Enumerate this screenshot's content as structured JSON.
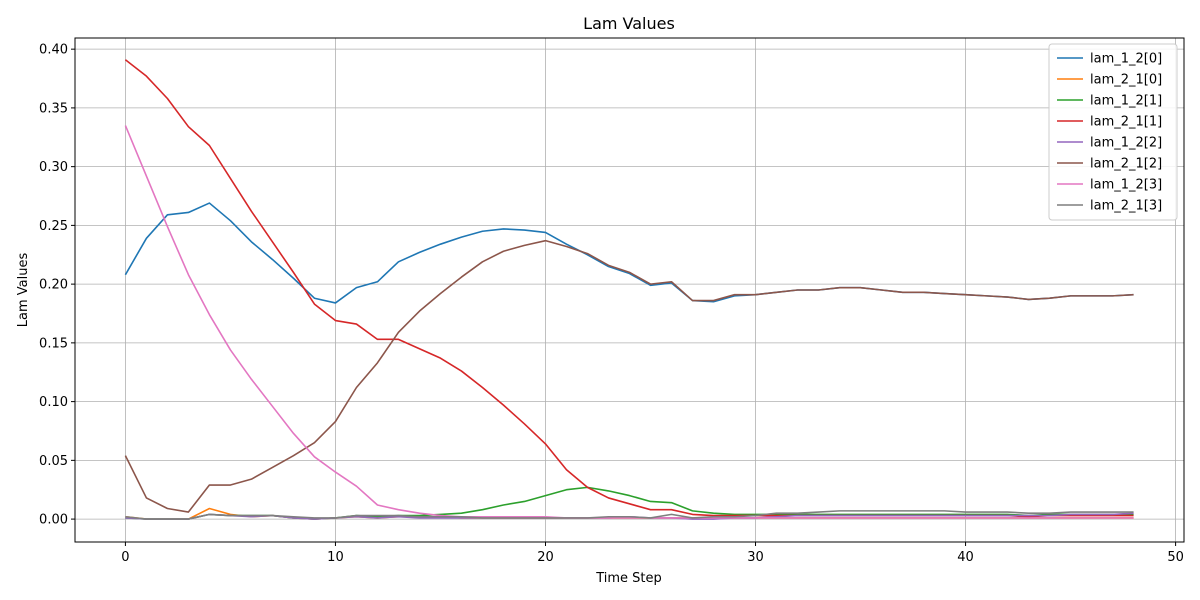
{
  "chart_data": {
    "type": "line",
    "title": "Lam Values",
    "xlabel": "Time Step",
    "ylabel": "Lam Values",
    "xlim": [
      -2.4,
      50.4
    ],
    "ylim": [
      -0.0195,
      0.4095
    ],
    "xticks": [
      0,
      10,
      20,
      30,
      40,
      50
    ],
    "yticks": [
      0.0,
      0.05,
      0.1,
      0.15,
      0.2,
      0.25,
      0.3,
      0.35,
      0.4
    ],
    "xtick_labels": [
      "0",
      "10",
      "20",
      "30",
      "40",
      "50"
    ],
    "ytick_labels": [
      "0.00",
      "0.05",
      "0.10",
      "0.15",
      "0.20",
      "0.25",
      "0.30",
      "0.35",
      "0.40"
    ],
    "grid": true,
    "legend_position": "top-right",
    "x": [
      0,
      1,
      2,
      3,
      4,
      5,
      6,
      7,
      8,
      9,
      10,
      11,
      12,
      13,
      14,
      15,
      16,
      17,
      18,
      19,
      20,
      21,
      22,
      23,
      24,
      25,
      26,
      27,
      28,
      29,
      30,
      31,
      32,
      33,
      34,
      35,
      36,
      37,
      38,
      39,
      40,
      41,
      42,
      43,
      44,
      45,
      46,
      47,
      48
    ],
    "series": [
      {
        "name": "lam_1_2[0]",
        "color": "#1f77b4",
        "values": [
          0.208,
          0.239,
          0.259,
          0.261,
          0.269,
          0.254,
          0.236,
          0.221,
          0.205,
          0.188,
          0.184,
          0.197,
          0.202,
          0.219,
          0.227,
          0.234,
          0.24,
          0.245,
          0.247,
          0.246,
          0.244,
          0.234,
          0.225,
          0.215,
          0.209,
          0.199,
          0.201,
          0.186,
          0.185,
          0.19,
          0.191,
          0.193,
          0.195,
          0.195,
          0.197,
          0.197,
          0.195,
          0.193,
          0.193,
          0.192,
          0.191,
          0.19,
          0.189,
          0.187,
          0.188,
          0.19,
          0.19,
          0.19,
          0.191
        ]
      },
      {
        "name": "lam_2_1[0]",
        "color": "#ff7f0e",
        "values": [
          0.002,
          0.0,
          0.0,
          0.0,
          0.009,
          0.004,
          0.002,
          0.003,
          0.001,
          0.0,
          0.001,
          0.002,
          0.001,
          0.002,
          0.002,
          0.002,
          0.001,
          0.001,
          0.001,
          0.001,
          0.001,
          0.001,
          0.001,
          0.001,
          0.001,
          0.001,
          0.001,
          0.001,
          0.001,
          0.001,
          0.001,
          0.001,
          0.001,
          0.001,
          0.001,
          0.001,
          0.001,
          0.001,
          0.001,
          0.001,
          0.001,
          0.001,
          0.001,
          0.001,
          0.001,
          0.001,
          0.001,
          0.001,
          0.001
        ]
      },
      {
        "name": "lam_1_2[1]",
        "color": "#2ca02c",
        "values": [
          0.001,
          0.0,
          0.0,
          0.0,
          0.004,
          0.003,
          0.003,
          0.003,
          0.001,
          0.0,
          0.001,
          0.003,
          0.002,
          0.003,
          0.003,
          0.004,
          0.005,
          0.008,
          0.012,
          0.015,
          0.02,
          0.025,
          0.027,
          0.024,
          0.02,
          0.015,
          0.014,
          0.007,
          0.005,
          0.004,
          0.004,
          0.004,
          0.004,
          0.004,
          0.004,
          0.004,
          0.004,
          0.004,
          0.004,
          0.004,
          0.004,
          0.004,
          0.004,
          0.003,
          0.004,
          0.004,
          0.004,
          0.004,
          0.004
        ]
      },
      {
        "name": "lam_2_1[1]",
        "color": "#d62728",
        "values": [
          0.391,
          0.377,
          0.358,
          0.334,
          0.318,
          0.29,
          0.262,
          0.236,
          0.21,
          0.183,
          0.169,
          0.166,
          0.153,
          0.153,
          0.145,
          0.137,
          0.126,
          0.112,
          0.097,
          0.081,
          0.064,
          0.042,
          0.027,
          0.018,
          0.013,
          0.008,
          0.008,
          0.004,
          0.003,
          0.003,
          0.003,
          0.003,
          0.003,
          0.003,
          0.003,
          0.003,
          0.003,
          0.003,
          0.003,
          0.003,
          0.003,
          0.003,
          0.003,
          0.002,
          0.003,
          0.003,
          0.003,
          0.003,
          0.003
        ]
      },
      {
        "name": "lam_1_2[2]",
        "color": "#9467bd",
        "values": [
          0.001,
          0.0,
          0.0,
          0.0,
          0.004,
          0.003,
          0.002,
          0.003,
          0.001,
          0.0,
          0.001,
          0.002,
          0.001,
          0.002,
          0.001,
          0.001,
          0.001,
          0.001,
          0.001,
          0.001,
          0.001,
          0.001,
          0.001,
          0.001,
          0.002,
          0.001,
          0.001,
          0.0,
          0.0,
          0.001,
          0.001,
          0.002,
          0.003,
          0.003,
          0.003,
          0.003,
          0.003,
          0.003,
          0.003,
          0.003,
          0.003,
          0.003,
          0.003,
          0.003,
          0.003,
          0.004,
          0.004,
          0.004,
          0.005
        ]
      },
      {
        "name": "lam_2_1[2]",
        "color": "#8c564b",
        "values": [
          0.054,
          0.018,
          0.009,
          0.006,
          0.029,
          0.029,
          0.034,
          0.044,
          0.054,
          0.065,
          0.083,
          0.112,
          0.133,
          0.159,
          0.177,
          0.192,
          0.206,
          0.219,
          0.228,
          0.233,
          0.237,
          0.232,
          0.226,
          0.216,
          0.21,
          0.2,
          0.202,
          0.186,
          0.186,
          0.191,
          0.191,
          0.193,
          0.195,
          0.195,
          0.197,
          0.197,
          0.195,
          0.193,
          0.193,
          0.192,
          0.191,
          0.19,
          0.189,
          0.187,
          0.188,
          0.19,
          0.19,
          0.19,
          0.191
        ]
      },
      {
        "name": "lam_1_2[3]",
        "color": "#e377c2",
        "values": [
          0.335,
          0.292,
          0.249,
          0.208,
          0.174,
          0.144,
          0.119,
          0.096,
          0.073,
          0.053,
          0.04,
          0.028,
          0.012,
          0.008,
          0.005,
          0.003,
          0.002,
          0.002,
          0.002,
          0.002,
          0.002,
          0.001,
          0.001,
          0.001,
          0.001,
          0.001,
          0.001,
          0.001,
          0.001,
          0.001,
          0.001,
          0.001,
          0.001,
          0.001,
          0.001,
          0.001,
          0.001,
          0.001,
          0.001,
          0.001,
          0.001,
          0.001,
          0.001,
          0.001,
          0.001,
          0.001,
          0.001,
          0.001,
          0.001
        ]
      },
      {
        "name": "lam_2_1[3]",
        "color": "#7f7f7f",
        "values": [
          0.002,
          0.0,
          0.0,
          0.0,
          0.004,
          0.003,
          0.003,
          0.003,
          0.002,
          0.001,
          0.001,
          0.003,
          0.003,
          0.003,
          0.002,
          0.002,
          0.002,
          0.001,
          0.001,
          0.001,
          0.001,
          0.001,
          0.001,
          0.002,
          0.002,
          0.001,
          0.004,
          0.001,
          0.002,
          0.002,
          0.003,
          0.005,
          0.005,
          0.006,
          0.007,
          0.007,
          0.007,
          0.007,
          0.007,
          0.007,
          0.006,
          0.006,
          0.006,
          0.005,
          0.005,
          0.006,
          0.006,
          0.006,
          0.006
        ]
      }
    ]
  }
}
